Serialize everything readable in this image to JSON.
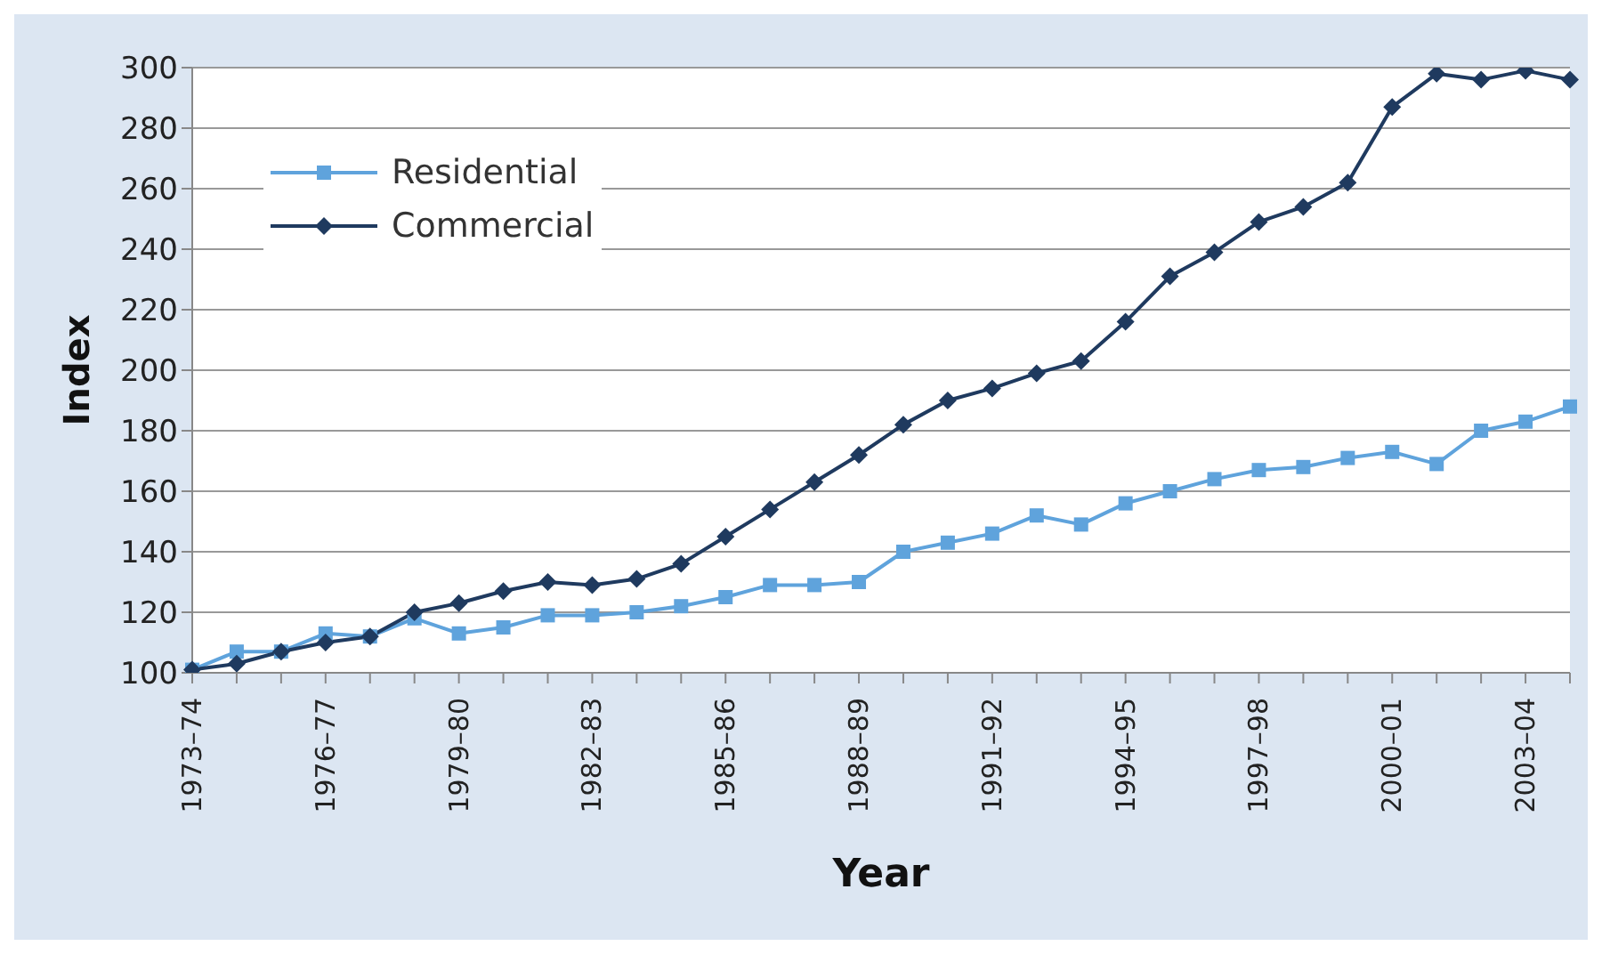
{
  "chart_data": {
    "type": "line",
    "xlabel": "Year",
    "ylabel": "Index",
    "categories": [
      "1973–74",
      null,
      null,
      "1976–77",
      null,
      null,
      "1979–80",
      null,
      null,
      "1982–83",
      null,
      null,
      "1985–86",
      null,
      null,
      "1988–89",
      null,
      null,
      "1991–92",
      null,
      null,
      "1994–95",
      null,
      null,
      "1997–98",
      null,
      null,
      "2000–01",
      null,
      null,
      "2003–04",
      null
    ],
    "series": [
      {
        "name": "Residential",
        "color": "#5fa3dc",
        "marker": "square",
        "values": [
          101,
          107,
          107,
          113,
          112,
          118,
          113,
          115,
          119,
          119,
          120,
          122,
          125,
          129,
          129,
          130,
          140,
          143,
          146,
          152,
          149,
          156,
          160,
          164,
          167,
          168,
          171,
          173,
          169,
          180,
          183,
          188
        ]
      },
      {
        "name": "Commercial",
        "color": "#1f3a5f",
        "marker": "diamond",
        "values": [
          101,
          103,
          107,
          110,
          112,
          120,
          123,
          127,
          130,
          129,
          131,
          136,
          145,
          154,
          163,
          172,
          182,
          190,
          194,
          199,
          203,
          216,
          231,
          239,
          249,
          254,
          262,
          287,
          298,
          296,
          299,
          296
        ]
      }
    ],
    "ylim": [
      100,
      300
    ],
    "yticks": [
      100,
      120,
      140,
      160,
      180,
      200,
      220,
      240,
      260,
      280,
      300
    ],
    "grid": "y",
    "legend": "top left"
  }
}
